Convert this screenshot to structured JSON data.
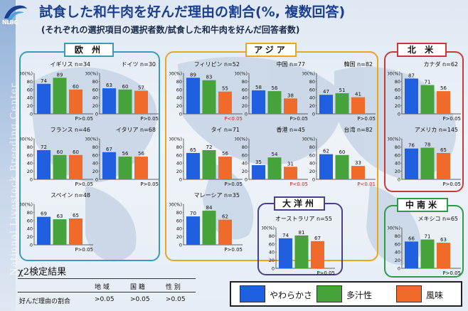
{
  "header": {
    "title": "試食した和牛肉を好んだ理由の割合(%, 複数回答)",
    "subtitle": "(それぞれの選択項目の選択者数/試食した和牛肉を好んだ回答者数)",
    "logo_text": "NLBC",
    "side_text": "National Livestock Breeding Center"
  },
  "colors": {
    "series": [
      "#1f5fe0",
      "#46a23a",
      "#f06b2a"
    ],
    "europe": "#3a9ab8",
    "asia": "#e8a81e",
    "namerica": "#c83a3a",
    "oceania": "#4a3f8f",
    "samerica": "#2f9a4a"
  },
  "regions": [
    {
      "name": "欧 州",
      "key": "europe"
    },
    {
      "name": "アジア",
      "key": "asia"
    },
    {
      "name": "北 米",
      "key": "namerica"
    },
    {
      "name": "大洋州",
      "key": "oceania"
    },
    {
      "name": "中南米",
      "key": "samerica"
    }
  ],
  "chart_data": {
    "type": "bar",
    "categories": [
      "やわらかさ",
      "多汁性",
      "風味"
    ],
    "ylim": [
      0,
      100
    ],
    "yticks": [
      "100(%)",
      "80",
      "60",
      "40",
      "20",
      "0"
    ],
    "panels": [
      {
        "country": "イギリス n=34",
        "values": [
          74,
          89,
          60
        ],
        "p": "P>0.05",
        "sig": false,
        "labels": [
          "74",
          "89",
          "60"
        ]
      },
      {
        "country": "ドイツ n=30",
        "values": [
          63,
          60,
          57
        ],
        "p": "P>0.05",
        "sig": false,
        "labels": [
          "63",
          "60",
          "57"
        ]
      },
      {
        "country": "フランス n=46",
        "values": [
          72,
          60,
          60
        ],
        "p": "P>0.05",
        "sig": false,
        "labels": [
          "72",
          "60",
          "60"
        ]
      },
      {
        "country": "イタリア n=68",
        "values": [
          67,
          56,
          56
        ],
        "p": "P>0.05",
        "sig": false,
        "labels": [
          "67",
          "56",
          "56"
        ]
      },
      {
        "country": "スペイン n=48",
        "values": [
          69,
          63,
          65
        ],
        "p": "P>0.05",
        "sig": false,
        "labels": [
          "69",
          "63",
          "65"
        ]
      },
      {
        "country": "フィリピン n=52",
        "values": [
          89,
          83,
          55
        ],
        "p": "P<0.05",
        "sig": true,
        "labels": [
          "89",
          "83",
          "55"
        ]
      },
      {
        "country": "中国 n=77",
        "values": [
          58,
          56,
          38
        ],
        "p": "P>0.05",
        "sig": false,
        "labels": [
          "58",
          "56",
          "38"
        ]
      },
      {
        "country": "韓国 n=82",
        "values": [
          47,
          51,
          41
        ],
        "p": "P>0.05",
        "sig": false,
        "labels": [
          "47",
          "51",
          "41"
        ]
      },
      {
        "country": "タイ n=71",
        "values": [
          65,
          72,
          56
        ],
        "p": "P>0.05",
        "sig": false,
        "labels": [
          "65",
          "72",
          "56"
        ]
      },
      {
        "country": "香港 n=45",
        "values": [
          35,
          54,
          31
        ],
        "p": "P<0.05",
        "sig": true,
        "labels": [
          "35",
          "54",
          "31"
        ]
      },
      {
        "country": "台湾 n=82",
        "values": [
          62,
          60,
          33
        ],
        "p": "P<0.01",
        "sig": true,
        "labels": [
          "62",
          "60",
          "33"
        ]
      },
      {
        "country": "マレーシア n=35",
        "values": [
          70,
          84,
          62
        ],
        "p": "P>0.05",
        "sig": false,
        "labels": [
          "70",
          "84",
          "62"
        ]
      },
      {
        "country": "カナダ n=62",
        "values": [
          87,
          71,
          56
        ],
        "p": "P>0.05",
        "sig": false,
        "labels": [
          "87",
          "71",
          "56"
        ]
      },
      {
        "country": "アメリカ n=145",
        "values": [
          76,
          78,
          65
        ],
        "p": "P>0.05",
        "sig": false,
        "labels": [
          "76",
          "78",
          "65"
        ]
      },
      {
        "country": "オーストラリア n=55",
        "values": [
          74,
          81,
          67
        ],
        "p": "P>0.05",
        "sig": false,
        "labels": [
          "74",
          "81",
          "67"
        ]
      },
      {
        "country": "メキシコ n=65",
        "values": [
          66,
          71,
          63
        ],
        "p": "P>0.05",
        "sig": false,
        "labels": [
          "66",
          "71",
          "63"
        ]
      }
    ]
  },
  "chi_square": {
    "title": "χ2検定結果",
    "columns": [
      "地 域",
      "国 籍",
      "性 別"
    ],
    "row_label": "好んだ理由の割合",
    "values": [
      ">0.05",
      ">0.05",
      ">0.05"
    ]
  },
  "legend": {
    "items": [
      "やわらかさ",
      "多汁性",
      "風味"
    ]
  }
}
